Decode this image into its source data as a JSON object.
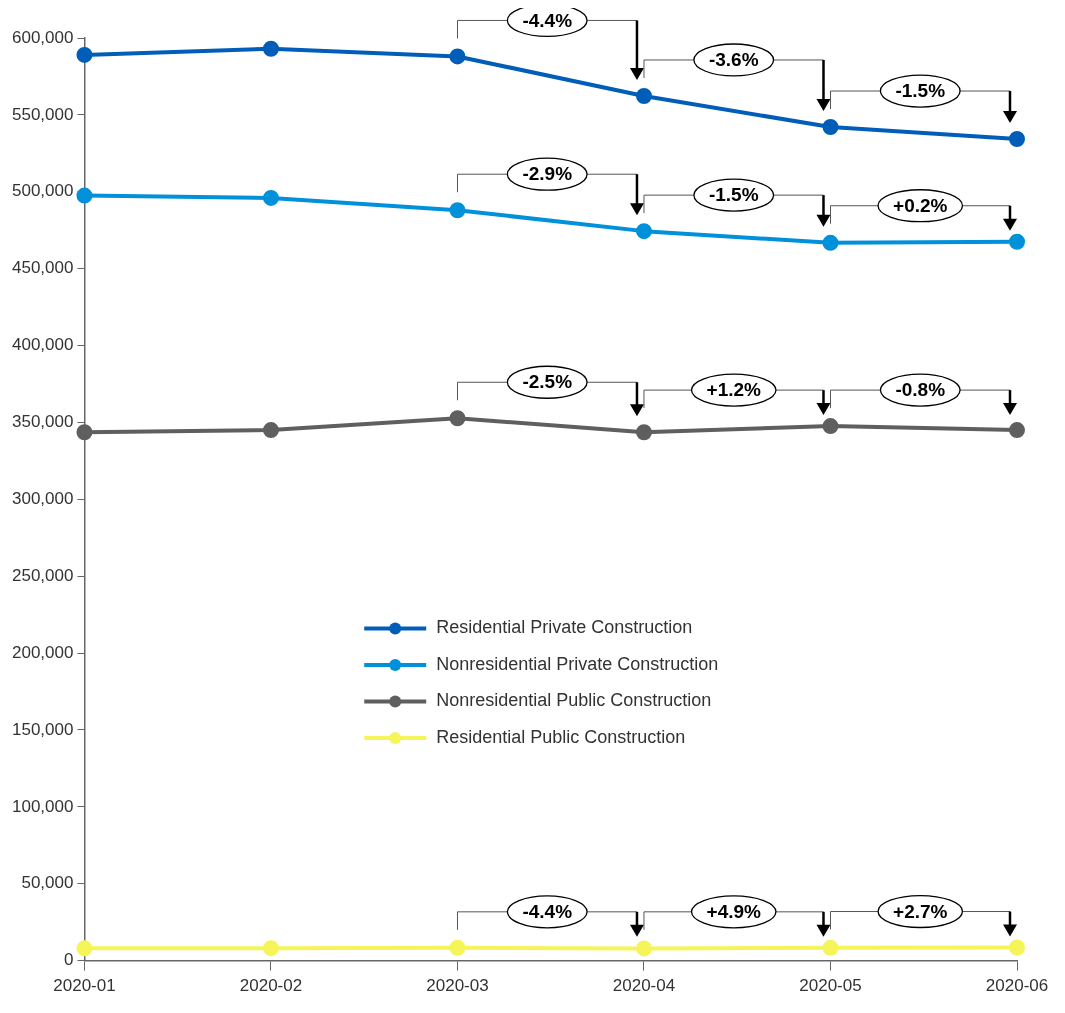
{
  "chart_data": {
    "type": "line",
    "categories": [
      "2020-01",
      "2020-02",
      "2020-03",
      "2020-04",
      "2020-05",
      "2020-06"
    ],
    "series": [
      {
        "name": "Residential Private Construction",
        "color": "#005eb8",
        "values": [
          589000,
          593000,
          588000,
          562300,
          542100,
          534300
        ]
      },
      {
        "name": "Nonresidential Private Construction",
        "color": "#0091da",
        "values": [
          497500,
          496000,
          488000,
          474400,
          466800,
          467500
        ]
      },
      {
        "name": "Nonresidential Public Construction",
        "color": "#5f5f5f",
        "values": [
          343600,
          345000,
          352700,
          343600,
          347600,
          345000
        ]
      },
      {
        "name": "Residential Public Construction",
        "color": "#f5f55a",
        "values": [
          8000,
          8100,
          8300,
          7900,
          8300,
          8500
        ]
      }
    ],
    "ylim": [
      0,
      600000
    ],
    "yticks": [
      0,
      {
        "value": 50000,
        "label": "50,000"
      },
      {
        "value": 100000,
        "label": "100,000"
      },
      {
        "value": 150000,
        "label": "150,000"
      },
      {
        "value": 200000,
        "label": "200,000"
      },
      {
        "value": 250000,
        "label": "250,000"
      },
      {
        "value": 300000,
        "label": "300,000"
      },
      {
        "value": 350000,
        "label": "350,000"
      },
      {
        "value": 400000,
        "label": "400,000"
      },
      {
        "value": 450000,
        "label": "450,000"
      },
      {
        "value": 500000,
        "label": "500,000"
      },
      {
        "value": 550000,
        "label": "550,000"
      },
      {
        "value": 600000,
        "label": "600,000"
      }
    ],
    "grid": false,
    "legend": "center",
    "marker": "circle",
    "line_style": "solid",
    "annotations": [
      "-4.4%",
      "-3.6%",
      "-1.5%",
      "-2.9%",
      "-1.5%",
      "+0.2%",
      "-2.5%",
      "+1.2%",
      "-0.8%",
      "-4.4%",
      "+4.9%",
      "+2.7%"
    ]
  }
}
